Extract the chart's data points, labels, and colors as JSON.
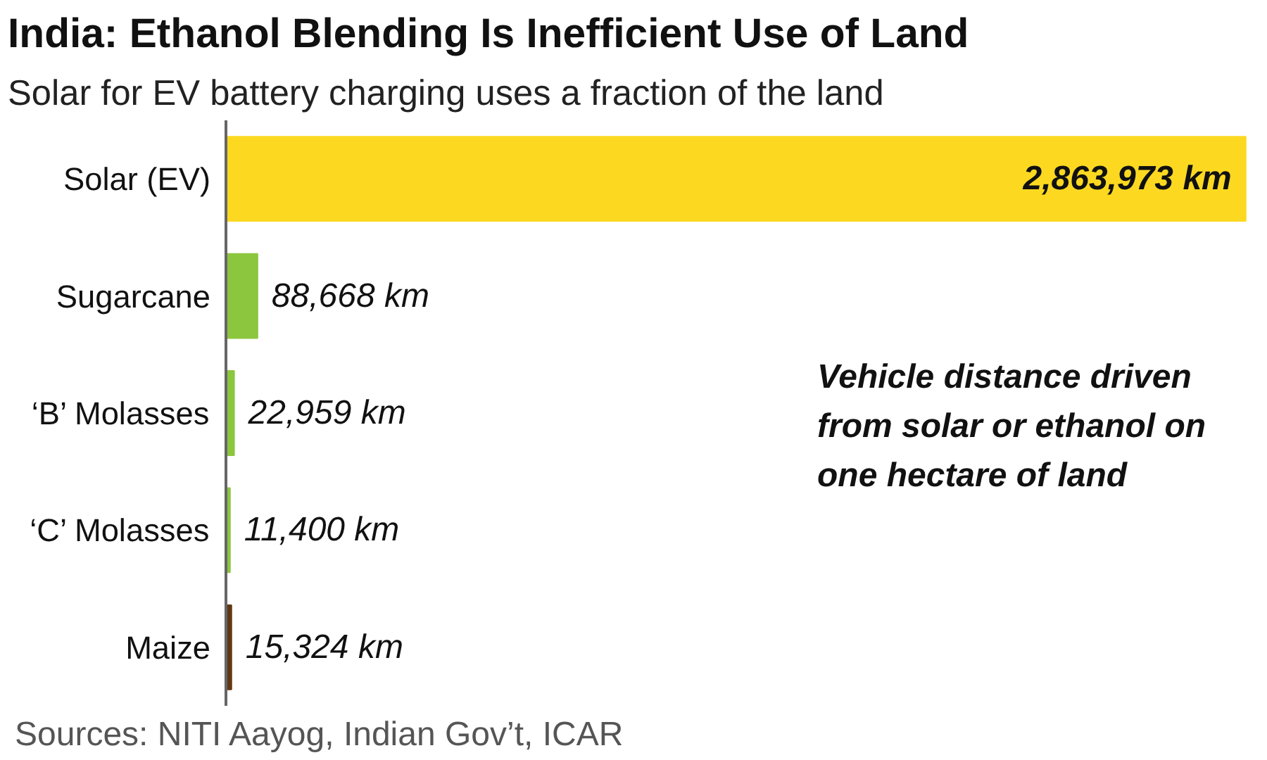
{
  "chart_data": {
    "type": "bar",
    "orientation": "horizontal",
    "title": "India: Ethanol Blending Is Inefficient Use of Land",
    "subtitle": "Solar for EV battery charging uses a fraction of the land",
    "categories": [
      "Solar (EV)",
      "Sugarcane",
      "‘B’ Molasses",
      "‘C’ Molasses",
      "Maize"
    ],
    "values": [
      2863973,
      88668,
      22959,
      11400,
      15324
    ],
    "colors": [
      "#fcd920",
      "#8cc63f",
      "#8cc63f",
      "#8cc63f",
      "#603813"
    ],
    "value_labels": [
      "2,863,973 km",
      "88,668 km",
      "22,959 km",
      "11,400 km",
      "15,324 km"
    ],
    "annotations": [
      "Vehicle distance driven\nfrom solar or ethanol on\none hectare of land",
      "Sources: NITI Aayog, Indian Gov’t, ICAR"
    ],
    "grid": false
  }
}
